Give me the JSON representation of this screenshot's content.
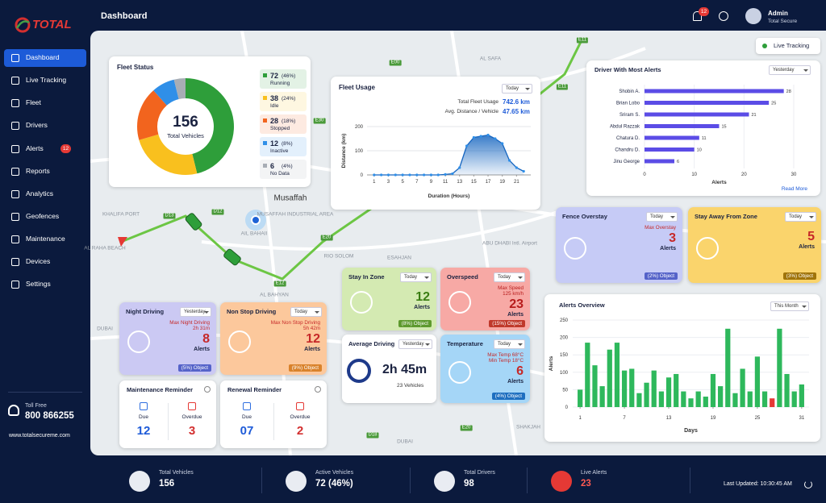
{
  "sidebar": {
    "brand": "TOTAL",
    "nav": [
      "Dashboard",
      "Live Tracking",
      "Fleet",
      "Drivers",
      "Alerts",
      "Reports",
      "Analytics",
      "Geofences",
      "Maintenance",
      "Devices",
      "Settings"
    ],
    "alerts_badge": 12,
    "toll_free_label": "Toll Free",
    "toll_free_number": "800 866255",
    "website": "www.totalsecureme.com"
  },
  "header": {
    "title": "Dashboard",
    "notifications": 12,
    "user_name": "Admin",
    "user_company": "Total Secure"
  },
  "live_tracking": "Live Tracking",
  "map_labels": [
    "AL SAFA",
    "Musaffah",
    "MUSAFFAH INDUSTRIAL AREA",
    "KHALIFA PORT",
    "AL RAHA BEACH",
    "AIL BAHAII",
    "ABU DHABI Intl. Airport",
    "AL BAHYAN",
    "RIO SOLOM",
    "ESAHJAN",
    "SHAKJAH",
    "DUBAI",
    "DUBAI"
  ],
  "road_labels": [
    "E00",
    "E11",
    "E30",
    "E20",
    "E12",
    "D13",
    "D12",
    "D18",
    "E20",
    "E11"
  ],
  "fleet_status": {
    "title": "Fleet Status",
    "total": 156,
    "total_label": "Total Vehicles",
    "segments": [
      {
        "name": "Running",
        "value": 72,
        "percent_label": "(46%)",
        "color": "#2e9e3a"
      },
      {
        "name": "Idle",
        "value": 38,
        "percent_label": "(24%)",
        "color": "#f9c01e"
      },
      {
        "name": "Stopped",
        "value": 28,
        "percent_label": "(18%)",
        "color": "#f2641e"
      },
      {
        "name": "Inactive",
        "value": 12,
        "percent_label": "(8%)",
        "color": "#2f8fe8"
      },
      {
        "name": "No Data",
        "value": 6,
        "percent_label": "(4%)",
        "color": "#a7adb5"
      }
    ]
  },
  "fleet_usage": {
    "type": "area",
    "title": "Fleet Usage",
    "period": "Today",
    "total_label": "Total Fleet Usage",
    "total_value": "742.6 km",
    "avg_label": "Avg. Distance / Vehicle",
    "avg_value": "47.65 km",
    "x": [
      1,
      2,
      3,
      4,
      5,
      6,
      7,
      8,
      9,
      10,
      11,
      12,
      13,
      14,
      15,
      16,
      17,
      18,
      19,
      20,
      21,
      22
    ],
    "values": [
      0,
      0,
      0,
      0,
      0,
      0,
      0,
      0,
      0,
      0,
      2,
      5,
      30,
      120,
      155,
      160,
      165,
      150,
      130,
      60,
      30,
      15
    ],
    "xlim": [
      0,
      23
    ],
    "xticks": [
      1,
      3,
      5,
      7,
      9,
      11,
      13,
      15,
      17,
      19,
      21
    ],
    "ylim": [
      0,
      200
    ],
    "yticks": [
      0,
      100,
      200
    ],
    "xlabel": "Duration (Hours)",
    "ylabel": "Distance (km)",
    "color": "#1565c0",
    "grid": true
  },
  "driver_alerts": {
    "type": "bar",
    "title": "Driver With Most Alerts",
    "period": "Yesterday",
    "categories": [
      "Shobin A.",
      "Brian Lobo",
      "Sriram S.",
      "Abdul Razzak",
      "Chatura D.",
      "Chandru D.",
      "Jinu George"
    ],
    "values": [
      28,
      25,
      21,
      15,
      11,
      10,
      6
    ],
    "xlim": [
      0,
      30
    ],
    "xticks": [
      0,
      10,
      20,
      30
    ],
    "xlabel": "Alerts",
    "color": "#5b4ce6",
    "grid": true,
    "read_more": "Read More"
  },
  "cards": [
    {
      "title": "Fence Overstay",
      "period": "Today",
      "details": [
        "Max Overstay"
      ],
      "count": 3,
      "count_label": "Alerts",
      "object": "(2%) Object",
      "color": "#c6cbf6",
      "accent": "#c62828",
      "pill": "#5563c9"
    },
    {
      "title": "Stay Away From Zone",
      "period": "Today",
      "details": [],
      "count": 5,
      "count_label": "Alerts",
      "object": "(3%) Object",
      "color": "#fad46c",
      "accent": "#c62828",
      "pill": "#a0740a"
    },
    {
      "title": "Stay In Zone",
      "period": "Today",
      "details": [],
      "count": 12,
      "count_label": "Alerts",
      "object": "(8%) Object",
      "color": "#d4eab2",
      "accent": "#3a7d12",
      "pill": "#5e9a2e"
    },
    {
      "title": "Overspeed",
      "period": "Today",
      "details": [
        "Max Speed",
        "125 km/h"
      ],
      "count": 23,
      "count_label": "Alerts",
      "object": "(15%) Object",
      "color": "#f7a9a5",
      "accent": "#b71c1c",
      "pill": "#c0392b"
    },
    {
      "title": "Temperature",
      "period": "Today",
      "details": [
        "Max Temp 68°C",
        "Min Temp 18°C"
      ],
      "count": 6,
      "count_label": "Alerts",
      "object": "(4%) Object",
      "color": "#a5d6f7",
      "accent": "#c62828",
      "pill": "#1e6fc0"
    },
    {
      "title": "Night Driving",
      "period": "Yesterday",
      "details": [
        "Max Night Driving",
        "2h 31m"
      ],
      "count": 8,
      "count_label": "Alerts",
      "object": "(5%) Object",
      "color": "#cbc9f3",
      "accent": "#c62828",
      "pill": "#5563c9"
    },
    {
      "title": "Non Stop Driving",
      "period": "Today",
      "details": [
        "Max Non Stop Driving",
        "5h 42m"
      ],
      "count": 12,
      "count_label": "Alerts",
      "object": "(9%) Object",
      "color": "#fcc89c",
      "accent": "#c62828",
      "pill": "#d9822b"
    }
  ],
  "average_driving": {
    "title": "Average Driving",
    "period": "Yesterday",
    "value": "2h 45m",
    "subtitle": "23 Vehicles"
  },
  "reminders": [
    {
      "title": "Maintenance Reminder",
      "due_label": "Due",
      "due": "12",
      "overdue_label": "Overdue",
      "overdue": "3"
    },
    {
      "title": "Renewal Reminder",
      "due_label": "Due",
      "due": "07",
      "overdue_label": "Overdue",
      "overdue": "2"
    }
  ],
  "alerts_overview": {
    "type": "bar",
    "title": "Alerts Overview",
    "period": "This Month",
    "x": [
      1,
      2,
      3,
      4,
      5,
      6,
      7,
      8,
      9,
      10,
      11,
      12,
      13,
      14,
      15,
      16,
      17,
      18,
      19,
      20,
      21,
      22,
      23,
      24,
      25,
      26,
      27,
      28,
      29,
      30,
      31
    ],
    "values": [
      50,
      185,
      120,
      60,
      165,
      185,
      105,
      110,
      40,
      70,
      105,
      45,
      85,
      95,
      45,
      25,
      45,
      30,
      95,
      60,
      225,
      40,
      110,
      45,
      145,
      45,
      25,
      225,
      95,
      45,
      65
    ],
    "colors": [
      "#2eb85c",
      "#2eb85c",
      "#2eb85c",
      "#2eb85c",
      "#2eb85c",
      "#2eb85c",
      "#2eb85c",
      "#2eb85c",
      "#2eb85c",
      "#2eb85c",
      "#2eb85c",
      "#2eb85c",
      "#2eb85c",
      "#2eb85c",
      "#2eb85c",
      "#2eb85c",
      "#2eb85c",
      "#2eb85c",
      "#2eb85c",
      "#2eb85c",
      "#2eb85c",
      "#2eb85c",
      "#2eb85c",
      "#2eb85c",
      "#2eb85c",
      "#2eb85c",
      "#e53935",
      "#2eb85c",
      "#2eb85c",
      "#2eb85c",
      "#2eb85c"
    ],
    "xlim": [
      0,
      32
    ],
    "xticks": [
      1,
      7,
      13,
      19,
      25,
      31
    ],
    "ylim": [
      0,
      250
    ],
    "yticks": [
      0,
      50,
      100,
      150,
      200,
      250
    ],
    "xlabel": "Days",
    "ylabel": "Alerts",
    "grid": true
  },
  "footer": {
    "stats": [
      {
        "label": "Total Vehicles",
        "value": 156
      },
      {
        "label": "Active Vehicles",
        "value": "72 (46%)"
      },
      {
        "label": "Total Drivers",
        "value": 98
      },
      {
        "label": "Live Alerts",
        "value": 23
      }
    ],
    "last_updated": "Last Updated: 10:30:45 AM"
  }
}
